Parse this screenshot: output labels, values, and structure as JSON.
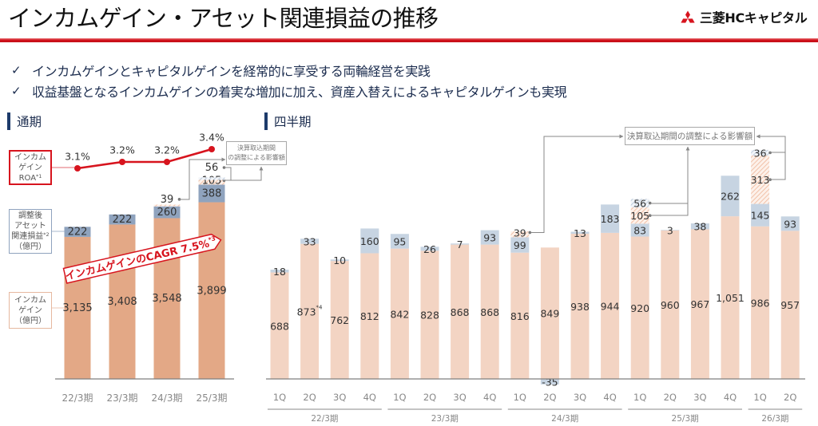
{
  "header": {
    "title": "インカムゲイン・アセット関連損益の推移",
    "brand_name": "三菱HCキャピタル",
    "brand_icon": "three-diamonds-logo"
  },
  "bullets": [
    {
      "mark": "✓",
      "text": "インカムゲインとキャピタルゲインを経常的に享受する両輪経営を実践"
    },
    {
      "mark": "✓",
      "text": "収益基盤となるインカムゲインの着実な増加に加え、資産入替えによるキャピタルゲインも実現"
    }
  ],
  "sections": {
    "annual": "通期",
    "quarterly": "四半期"
  },
  "colors": {
    "brand_red": "#d7141e",
    "navy": "#1d3b6b",
    "income_annual": "#e3a886",
    "asset_annual": "#8fa3be",
    "income_quarterly": "#f3d4c3",
    "asset_quarterly": "#c7d4e2",
    "roa_line": "#d7141e",
    "adjustment_hatch_income": "#efb699",
    "adjustment_hatch_asset": "#b3c3d6"
  },
  "chart_data": [
    {
      "id": "annual",
      "type": "bar",
      "stacked": true,
      "title": "通期",
      "categories": [
        "22/3期",
        "23/3期",
        "24/3期",
        "25/3期"
      ],
      "series": [
        {
          "key": "income",
          "name": "インカムゲイン（億円）",
          "values": [
            3135,
            3408,
            3548,
            3899
          ],
          "labels": [
            "3,135",
            "3,408",
            "3,548",
            "3,899"
          ]
        },
        {
          "key": "asset",
          "name": "調整後アセット関連損益（億円）",
          "values": [
            222,
            222,
            260,
            388
          ],
          "labels": [
            "222",
            "222",
            "260",
            "388"
          ]
        },
        {
          "key": "adj_income",
          "name": "決算取込期間の調整による影響額（インカムゲイン）",
          "values": [
            null,
            null,
            39,
            105
          ],
          "labels": [
            null,
            null,
            "39",
            "105"
          ]
        },
        {
          "key": "adj_asset",
          "name": "決算取込期間の調整による影響額（アセット関連損益）",
          "values": [
            null,
            null,
            null,
            56
          ],
          "labels": [
            null,
            null,
            null,
            "56"
          ]
        }
      ],
      "line": {
        "key": "roa",
        "name": "インカムゲインROA",
        "values": [
          3.1,
          3.2,
          3.2,
          3.4
        ],
        "labels": [
          "3.1%",
          "3.2%",
          "3.2%",
          "3.4%"
        ],
        "unit": "%"
      },
      "legend": [
        {
          "key": "roa",
          "lines": [
            {
              "text": "インカム"
            },
            {
              "text": "ゲイン"
            },
            {
              "text": "ROA",
              "note": "*1"
            }
          ]
        },
        {
          "key": "asset",
          "lines": [
            {
              "text": "調整後"
            },
            {
              "text": "アセット"
            },
            {
              "text": "関連損益",
              "note": "*2"
            },
            {
              "text": "（億円）"
            }
          ]
        },
        {
          "key": "income",
          "lines": [
            {
              "text": "インカム"
            },
            {
              "text": "ゲイン"
            },
            {
              "text": "（億円）"
            }
          ]
        }
      ],
      "annotations": {
        "cagr": {
          "text": "インカムゲインのCAGR 7.5%",
          "note": "*3"
        },
        "adjustment_box": {
          "lines": [
            "決算取込期間",
            "の調整による影響額"
          ]
        }
      },
      "xlabel": "",
      "ylabel": "億円",
      "ylim": [
        0,
        5000
      ],
      "grid": false
    },
    {
      "id": "quarterly",
      "type": "bar",
      "stacked": true,
      "title": "四半期",
      "categories": [
        "1Q",
        "2Q",
        "3Q",
        "4Q",
        "1Q",
        "2Q",
        "3Q",
        "4Q",
        "1Q",
        "2Q",
        "3Q",
        "4Q",
        "1Q",
        "2Q",
        "3Q",
        "4Q",
        "1Q",
        "2Q"
      ],
      "groups": [
        {
          "label": "22/3期",
          "count": 4
        },
        {
          "label": "23/3期",
          "count": 4
        },
        {
          "label": "24/3期",
          "count": 4
        },
        {
          "label": "25/3期",
          "count": 4
        },
        {
          "label": "26/3期",
          "count": 2
        }
      ],
      "series": [
        {
          "key": "income",
          "name": "インカムゲイン（億円）",
          "values": [
            688,
            873,
            762,
            812,
            842,
            828,
            868,
            868,
            816,
            849,
            938,
            944,
            920,
            960,
            967,
            1051,
            986,
            957
          ],
          "labels": [
            "688",
            "873",
            "762",
            "812",
            "842",
            "828",
            "868",
            "868",
            "816",
            "849",
            "938",
            "944",
            "920",
            "960",
            "967",
            "1,051",
            "986",
            "957"
          ],
          "notes": [
            null,
            "*4",
            null,
            null,
            null,
            null,
            null,
            null,
            null,
            null,
            null,
            null,
            null,
            null,
            null,
            null,
            null,
            null
          ]
        },
        {
          "key": "asset",
          "name": "調整後アセット関連損益（億円）",
          "values": [
            18,
            33,
            10,
            160,
            95,
            26,
            7,
            93,
            99,
            -35,
            13,
            183,
            83,
            3,
            38,
            262,
            145,
            93
          ],
          "labels": [
            "18",
            "33",
            "10",
            "160",
            "95",
            "26",
            "7",
            "93",
            "99",
            "-35",
            "13",
            "183",
            "83",
            "3",
            "38",
            "262",
            "145",
            "93"
          ]
        },
        {
          "key": "adj_income",
          "name": "決算取込期間の調整による影響額（インカムゲイン）",
          "values": [
            null,
            null,
            null,
            null,
            null,
            null,
            null,
            null,
            39,
            null,
            null,
            null,
            105,
            null,
            null,
            null,
            313,
            null
          ],
          "labels": [
            null,
            null,
            null,
            null,
            null,
            null,
            null,
            null,
            "39",
            null,
            null,
            null,
            "105",
            null,
            null,
            null,
            "313",
            null
          ]
        },
        {
          "key": "adj_asset",
          "name": "決算取込期間の調整による影響額（アセット関連損益）",
          "values": [
            null,
            null,
            null,
            null,
            null,
            null,
            null,
            null,
            null,
            null,
            null,
            null,
            56,
            null,
            null,
            null,
            36,
            null
          ],
          "labels": [
            null,
            null,
            null,
            null,
            null,
            null,
            null,
            null,
            null,
            null,
            null,
            null,
            "56",
            null,
            null,
            null,
            "36",
            null
          ]
        }
      ],
      "annotations": {
        "adjustment_box": {
          "text": "決算取込期間の調整による影響額"
        }
      },
      "xlabel": "",
      "ylabel": "億円",
      "ylim": [
        -50,
        1600
      ],
      "grid": false
    }
  ]
}
